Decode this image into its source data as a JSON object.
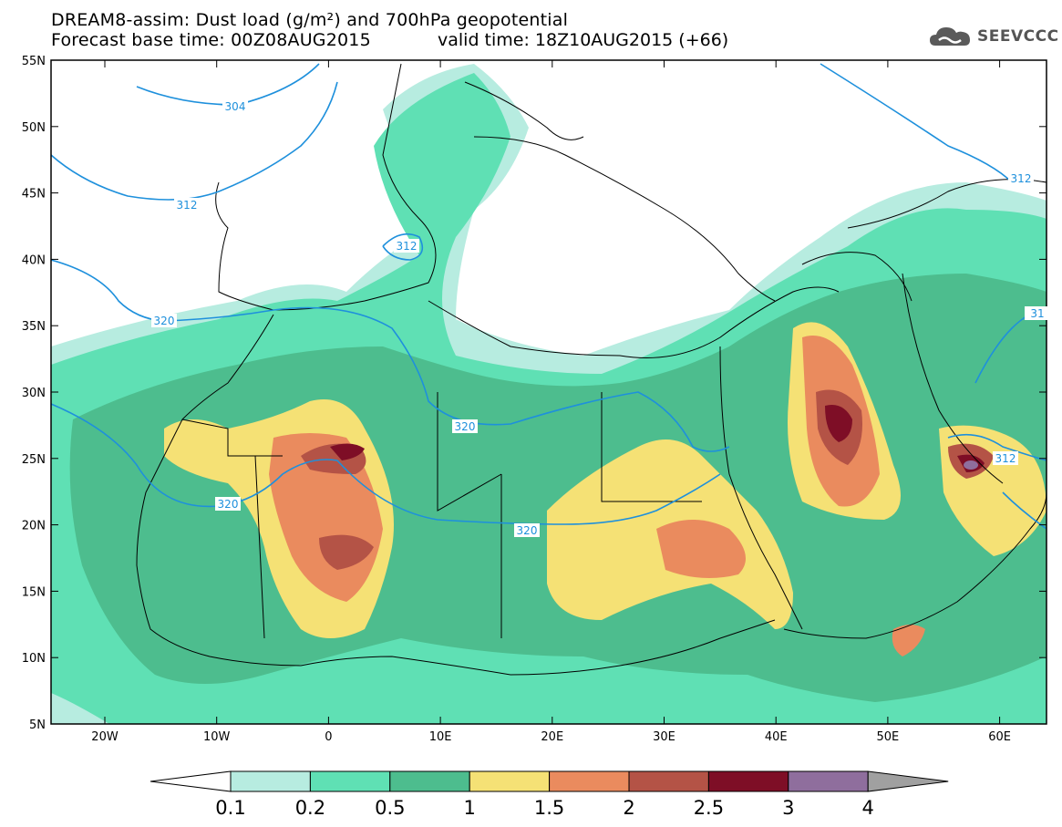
{
  "header": {
    "title_line1": "DREAM8-assim: Dust load (g/m²) and 700hPa geopotential",
    "title_line2": "Forecast base time: 00Z08AUG2015",
    "valid_time": "valid time: 18Z10AUG2015 (+66)",
    "logo_text": "SEEVCCC"
  },
  "map": {
    "lat_labels": [
      "55N",
      "50N",
      "45N",
      "40N",
      "35N",
      "30N",
      "25N",
      "20N",
      "15N",
      "10N",
      "5N"
    ],
    "lon_labels": [
      "20W",
      "10W",
      "0",
      "10E",
      "20E",
      "30E",
      "40E",
      "50E",
      "60E"
    ],
    "contour_labels": [
      "304",
      "312",
      "312",
      "320",
      "320",
      "320",
      "320",
      "312",
      "312",
      "31"
    ],
    "colors": {
      "ocean_bg": "#ffffff",
      "contour_line": "#1e90dc",
      "border": "#000000"
    }
  },
  "legend": {
    "tick_labels": [
      "0.1",
      "0.2",
      "0.5",
      "1",
      "1.5",
      "2",
      "2.5",
      "3",
      "4"
    ],
    "colors": [
      "#ffffff",
      "#b7ece0",
      "#5fe0b4",
      "#4dbd8e",
      "#f5e175",
      "#ea8b5e",
      "#b45346",
      "#7e0e26",
      "#8f6e9d",
      "#a0a0a0"
    ]
  }
}
